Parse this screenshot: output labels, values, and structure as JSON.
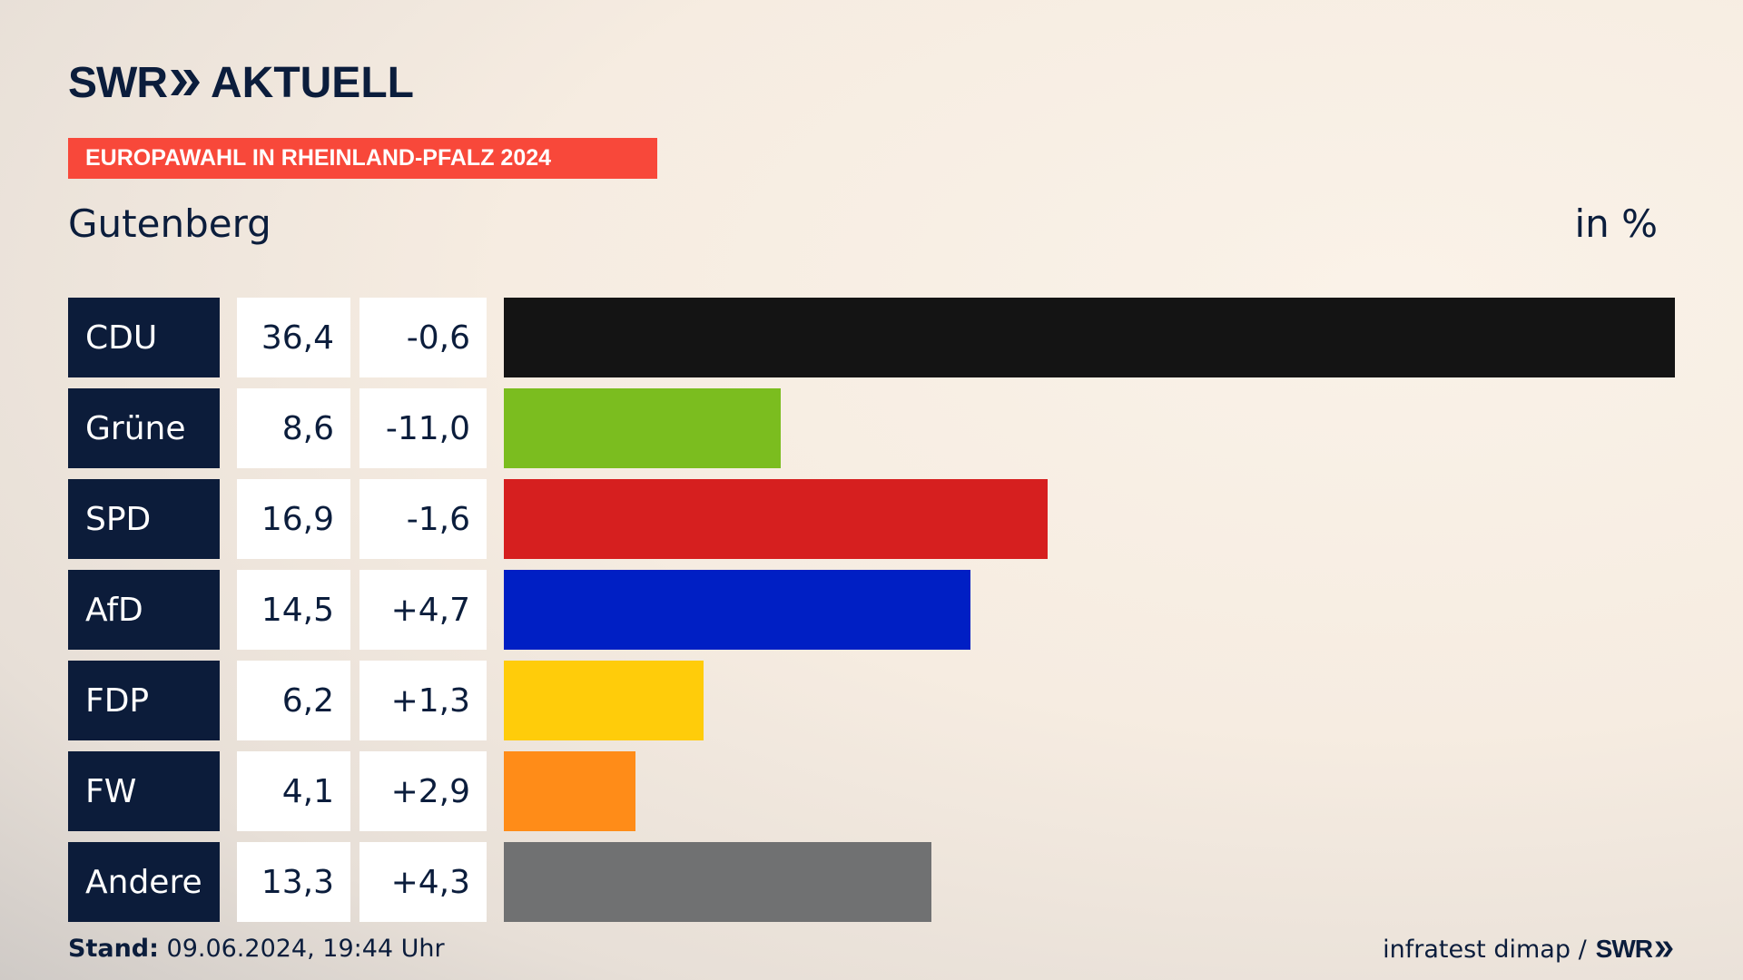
{
  "header": {
    "logo_swr": "SWR",
    "logo_aktuell": "AKTUELL",
    "badge": "EUROPAWAHL IN RHEINLAND-PFALZ 2024",
    "place": "Gutenberg",
    "unit": "in %"
  },
  "footer": {
    "stand_label": "Stand:",
    "stand_value": "09.06.2024, 19:44 Uhr",
    "source": "infratest dimap /",
    "source_logo": "SWR"
  },
  "colors": {
    "navy": "#0c1c3a",
    "badge": "#f8483a"
  },
  "chart_data": {
    "type": "bar",
    "orientation": "horizontal",
    "categories": [
      "CDU",
      "Grüne",
      "SPD",
      "AfD",
      "FDP",
      "FW",
      "Andere"
    ],
    "values": [
      36.4,
      8.6,
      16.9,
      14.5,
      6.2,
      4.1,
      13.3
    ],
    "value_labels": [
      "36,4",
      "8,6",
      "16,9",
      "14,5",
      "6,2",
      "4,1",
      "13,3"
    ],
    "diff_labels": [
      "-0,6",
      "-11,0",
      "-1,6",
      "+4,7",
      "+1,3",
      "+2,9",
      "+4,3"
    ],
    "bar_colors": [
      "#141414",
      "#7bbd1f",
      "#d61f1f",
      "#001fc4",
      "#ffcc0a",
      "#ff8c18",
      "#707172"
    ],
    "xlim": [
      0,
      36.4
    ]
  }
}
